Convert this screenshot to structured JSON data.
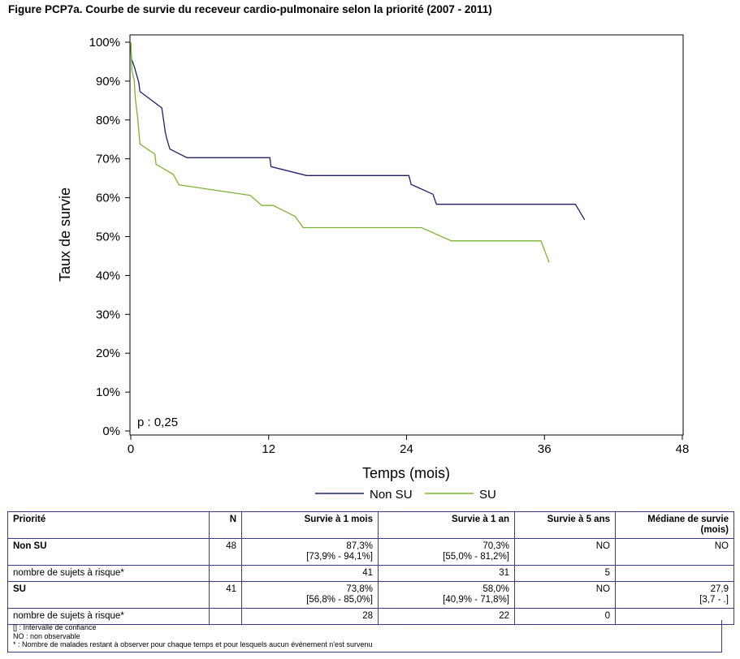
{
  "title": "Figure PCP7a. Courbe de survie du receveur cardio-pulmonaire selon la priorité (2007 - 2011)",
  "chart_data": {
    "type": "line",
    "step": true,
    "xlabel": "Temps (mois)",
    "ylabel": "Taux de survie",
    "xlim": [
      0,
      48
    ],
    "ylim": [
      0,
      100
    ],
    "xticks": [
      "0",
      "12",
      "24",
      "36",
      "48"
    ],
    "yticks": [
      "0%",
      "10%",
      "20%",
      "30%",
      "40%",
      "50%",
      "60%",
      "70%",
      "80%",
      "90%",
      "100%"
    ],
    "annotation": "p : 0,25",
    "legend_position": "bottom",
    "series": [
      {
        "name": "Non SU",
        "color": "#1f1f6e",
        "points": [
          [
            0,
            100
          ],
          [
            0.05,
            95.8
          ],
          [
            0.3,
            93.8
          ],
          [
            0.5,
            91.7
          ],
          [
            0.7,
            89.6
          ],
          [
            0.8,
            87.3
          ],
          [
            2.7,
            83.1
          ],
          [
            3.0,
            77
          ],
          [
            3.1,
            75.5
          ],
          [
            3.4,
            72.5
          ],
          [
            4.9,
            70.3
          ],
          [
            12.1,
            70.3
          ],
          [
            12.2,
            68
          ],
          [
            15.3,
            65.7
          ],
          [
            24.2,
            65.7
          ],
          [
            24.4,
            63.4
          ],
          [
            26.3,
            60.9
          ],
          [
            26.6,
            58.3
          ],
          [
            38.7,
            58.3
          ],
          [
            39.5,
            54.3
          ]
        ]
      },
      {
        "name": "SU",
        "color": "#7ab52e",
        "points": [
          [
            0,
            100
          ],
          [
            0.1,
            92.7
          ],
          [
            0.3,
            90.2
          ],
          [
            0.4,
            85.4
          ],
          [
            0.5,
            82.9
          ],
          [
            0.6,
            80.5
          ],
          [
            0.8,
            73.8
          ],
          [
            2.1,
            71.2
          ],
          [
            2.2,
            68.6
          ],
          [
            3.7,
            66
          ],
          [
            4.2,
            63.3
          ],
          [
            10.4,
            60.6
          ],
          [
            11.4,
            58.0
          ],
          [
            12.4,
            58.0
          ],
          [
            14.3,
            55.2
          ],
          [
            15.0,
            52.3
          ],
          [
            25.3,
            52.3
          ],
          [
            27.9,
            48.9
          ],
          [
            35.7,
            48.9
          ],
          [
            36.4,
            43.4
          ]
        ]
      }
    ]
  },
  "table": {
    "headers": [
      "Priorité",
      "N",
      "Survie à 1 mois",
      "Survie à 1 an",
      "Survie à 5 ans",
      "Médiane de survie (mois)"
    ],
    "groups": [
      {
        "name": "Non SU",
        "n": "48",
        "m1": "87,3%",
        "m1_ci": "[73,9% - 94,1%]",
        "y1": "70,3%",
        "y1_ci": "[55,0% - 81,2%]",
        "y5": "NO",
        "median": "NO",
        "median_ci": "",
        "risk_label": "nombre de sujets à risque*",
        "risk_m1": "41",
        "risk_y1": "31",
        "risk_y5": "5"
      },
      {
        "name": "SU",
        "n": "41",
        "m1": "73,8%",
        "m1_ci": "[56,8% - 85,0%]",
        "y1": "58,0%",
        "y1_ci": "[40,9% - 71,8%]",
        "y5": "NO",
        "median": "27,9",
        "median_ci": "[3,7 - .]",
        "risk_label": "nombre de sujets à risque*",
        "risk_m1": "28",
        "risk_y1": "22",
        "risk_y5": "0"
      }
    ]
  },
  "footnotes": [
    "[] : Intervalle de confiance",
    "NO : non observable",
    "* : Nombre de malades restant à observer pour chaque temps et pour lesquels aucun événement n'est survenu"
  ]
}
